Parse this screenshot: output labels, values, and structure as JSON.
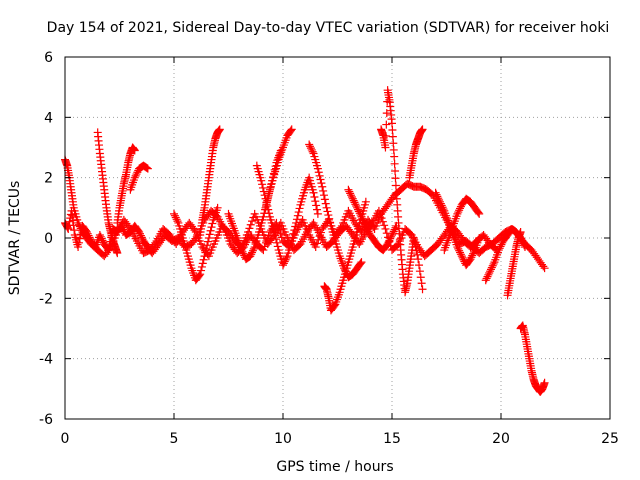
{
  "chart_data": {
    "type": "scatter",
    "title": "Day 154 of 2021, Sidereal Day-to-day VTEC variation (SDTVAR) for receiver hoki",
    "xlabel": "GPS time / hours",
    "ylabel": "SDTVAR / TECUs",
    "xlim": [
      0,
      25
    ],
    "ylim": [
      -6,
      6
    ],
    "xticks": [
      0,
      5,
      10,
      15,
      20,
      25
    ],
    "yticks": [
      -6,
      -4,
      -2,
      0,
      2,
      4,
      6
    ],
    "grid": true,
    "marker": "+",
    "color": "#ff0000",
    "series": [
      {
        "name": "s1",
        "x": [
          0.0,
          0.15,
          0.3,
          0.45,
          0.6,
          0.8,
          1.0,
          1.2,
          1.4,
          1.6,
          1.8,
          2.0,
          2.2,
          2.4,
          2.6,
          2.8,
          3.0,
          3.2,
          3.4,
          3.6,
          3.8,
          4.0,
          4.3,
          4.6,
          4.9,
          5.2,
          5.5,
          5.8,
          6.1,
          6.4,
          6.7,
          7.0,
          7.3,
          7.6,
          7.9,
          8.2,
          8.5,
          8.8,
          9.1,
          9.4,
          9.7,
          10.0,
          10.3,
          10.6,
          10.9,
          11.2,
          11.5,
          11.8,
          12.1,
          12.4,
          12.7,
          13.0,
          13.3,
          13.6,
          13.9,
          14.2,
          14.5,
          14.8,
          15.1,
          15.4,
          15.7,
          16.0,
          16.3,
          16.6,
          16.9,
          17.2,
          17.5,
          17.8,
          18.1,
          18.4,
          18.7,
          19.0,
          19.3,
          19.6,
          19.9,
          20.2,
          20.5,
          20.8,
          21.1,
          21.4,
          21.7,
          22.0
        ],
        "y": [
          0.5,
          0.3,
          0.9,
          0.1,
          -0.3,
          0.4,
          0.2,
          -0.1,
          -0.3,
          0.1,
          -0.2,
          -0.4,
          0.3,
          0.2,
          0.4,
          0.1,
          0.2,
          0.4,
          0.2,
          -0.1,
          -0.3,
          -0.5,
          -0.2,
          0.1,
          -0.1,
          0.0,
          -0.3,
          -0.2,
          0.1,
          0.6,
          0.9,
          0.7,
          0.3,
          -0.2,
          -0.5,
          -0.3,
          0.1,
          -0.2,
          -0.4,
          0.2,
          0.5,
          -0.1,
          -0.3,
          0.2,
          0.6,
          0.1,
          -0.3,
          0.3,
          0.6,
          0.1,
          0.4,
          0.9,
          0.5,
          0.2,
          0.6,
          0.3,
          0.8,
          1.1,
          1.4,
          1.6,
          1.8,
          1.7,
          1.7,
          1.6,
          1.4,
          1.0,
          0.6,
          0.2,
          -0.2,
          -0.1,
          -0.3,
          -0.5,
          -0.3,
          -0.2,
          0.0,
          0.2,
          0.3,
          0.1,
          -0.2,
          -0.4,
          -0.7,
          -1.0
        ]
      },
      {
        "name": "s2",
        "x": [
          0.0,
          0.1,
          0.2,
          0.3,
          0.4,
          0.6,
          0.8,
          1.0,
          1.2,
          1.5,
          1.8,
          2.1,
          2.4,
          2.7,
          3.0,
          3.3,
          3.6,
          3.9,
          4.2,
          4.5,
          4.8,
          5.1,
          5.4,
          5.7,
          6.0,
          6.3,
          6.6,
          6.9,
          7.2,
          7.5,
          7.8,
          8.1,
          8.4,
          8.7,
          9.0,
          9.3,
          9.6,
          9.9,
          10.2,
          10.5,
          10.8,
          11.1,
          11.4,
          11.7,
          12.0,
          12.3,
          12.6,
          12.9,
          13.2,
          13.5,
          13.8,
          14.1,
          14.4,
          14.7,
          15.0,
          15.3,
          15.6,
          15.9,
          16.2,
          16.5,
          16.8,
          17.1,
          17.4,
          17.7,
          18.0,
          18.3,
          18.6,
          18.9,
          19.2,
          19.5,
          19.8
        ],
        "y": [
          2.6,
          2.4,
          2.0,
          1.5,
          1.0,
          0.5,
          0.2,
          0.0,
          -0.2,
          -0.4,
          -0.6,
          -0.3,
          0.2,
          0.6,
          0.3,
          -0.1,
          -0.5,
          -0.4,
          -0.1,
          0.3,
          0.1,
          -0.2,
          0.2,
          0.5,
          0.2,
          -0.3,
          -0.6,
          -0.1,
          0.4,
          0.2,
          -0.1,
          -0.3,
          0.2,
          0.8,
          0.3,
          -0.2,
          0.1,
          0.5,
          0.0,
          -0.4,
          -0.2,
          0.2,
          0.5,
          0.1,
          -0.3,
          -0.1,
          0.2,
          0.4,
          0.1,
          -0.2,
          0.2,
          0.5,
          0.9,
          0.3,
          -0.4,
          -0.2,
          0.3,
          0.1,
          -0.3,
          -0.6,
          -0.4,
          -0.2,
          0.1,
          0.4,
          0.2,
          -0.1,
          -0.3,
          -0.1,
          0.1,
          -0.2,
          -0.4
        ]
      },
      {
        "name": "s3",
        "x": [
          1.5,
          1.6,
          1.7,
          1.8,
          1.9,
          2.0,
          2.1,
          2.2,
          2.3,
          2.4
        ],
        "y": [
          3.5,
          2.8,
          2.2,
          1.6,
          1.0,
          0.5,
          0.2,
          -0.1,
          -0.3,
          -0.5
        ]
      },
      {
        "name": "s4",
        "x": [
          2.4,
          2.5,
          2.6,
          2.7,
          2.8,
          2.9,
          3.0,
          3.1,
          3.2
        ],
        "y": [
          0.5,
          1.0,
          1.4,
          1.8,
          2.1,
          2.5,
          2.8,
          3.0,
          2.9
        ]
      },
      {
        "name": "s5",
        "x": [
          3.0,
          3.2,
          3.4,
          3.6,
          3.8
        ],
        "y": [
          1.6,
          2.0,
          2.3,
          2.4,
          2.3
        ]
      },
      {
        "name": "s6",
        "x": [
          5.0,
          5.2,
          5.4,
          5.6,
          5.8,
          6.0,
          6.2,
          6.4,
          6.6,
          6.8,
          7.0
        ],
        "y": [
          0.8,
          0.5,
          0.0,
          -0.5,
          -1.0,
          -1.4,
          -1.2,
          -0.6,
          0.0,
          0.6,
          1.0
        ]
      },
      {
        "name": "s7",
        "x": [
          6.2,
          6.3,
          6.4,
          6.5,
          6.6,
          6.7,
          6.8,
          6.9,
          7.0,
          7.1
        ],
        "y": [
          0.1,
          0.6,
          1.0,
          1.5,
          2.0,
          2.5,
          3.0,
          3.3,
          3.5,
          3.6
        ]
      },
      {
        "name": "s8",
        "x": [
          7.5,
          7.7,
          7.9,
          8.1,
          8.3,
          8.5,
          8.7,
          8.9,
          9.1,
          9.3,
          9.5,
          9.7,
          9.9
        ],
        "y": [
          0.8,
          0.4,
          0.0,
          -0.4,
          -0.7,
          -0.6,
          -0.3,
          0.2,
          0.7,
          1.3,
          1.9,
          2.5,
          2.9
        ]
      },
      {
        "name": "s9",
        "x": [
          8.8,
          9.0,
          9.2,
          9.4,
          9.6,
          9.8,
          10.0,
          10.2,
          10.4,
          10.6,
          10.8,
          11.0,
          11.2,
          11.4,
          11.6
        ],
        "y": [
          2.4,
          1.9,
          1.3,
          0.7,
          0.2,
          -0.4,
          -0.9,
          -0.6,
          -0.1,
          0.5,
          1.1,
          1.6,
          2.0,
          1.5,
          0.8
        ]
      },
      {
        "name": "s10",
        "x": [
          9.2,
          9.4,
          9.6,
          9.8,
          10.0,
          10.2,
          10.4
        ],
        "y": [
          1.0,
          1.6,
          2.1,
          2.6,
          3.0,
          3.4,
          3.6
        ]
      },
      {
        "name": "s11",
        "x": [
          11.2,
          11.4,
          11.6,
          11.8,
          12.0,
          12.2,
          12.4,
          12.6,
          12.8,
          13.0,
          13.2,
          13.4,
          13.6
        ],
        "y": [
          3.1,
          2.8,
          2.3,
          1.7,
          1.0,
          0.4,
          -0.1,
          -0.6,
          -1.0,
          -1.3,
          -1.2,
          -1.0,
          -0.8
        ]
      },
      {
        "name": "s12",
        "x": [
          11.9,
          12.0,
          12.1,
          12.2,
          12.4,
          12.6,
          12.8,
          13.0,
          13.2,
          13.4,
          13.6,
          13.8
        ],
        "y": [
          -1.6,
          -1.7,
          -2.0,
          -2.4,
          -2.2,
          -1.8,
          -1.3,
          -0.8,
          -0.3,
          0.2,
          0.7,
          1.2
        ]
      },
      {
        "name": "s13",
        "x": [
          13.0,
          13.2,
          13.4,
          13.6,
          13.8,
          14.0,
          14.2,
          14.4,
          14.6,
          14.8,
          15.0,
          15.2
        ],
        "y": [
          1.6,
          1.3,
          1.0,
          0.7,
          0.4,
          0.1,
          -0.1,
          -0.3,
          -0.4,
          -0.2,
          0.1,
          0.4
        ]
      },
      {
        "name": "s14",
        "x": [
          14.5,
          14.6,
          14.7,
          14.8,
          14.9,
          15.0,
          15.1,
          15.2,
          15.3,
          15.4,
          15.5,
          15.6,
          15.7,
          15.8,
          15.9,
          16.0,
          16.2,
          16.4
        ],
        "y": [
          3.6,
          3.4,
          3.0,
          4.9,
          4.5,
          3.8,
          2.7,
          1.5,
          0.5,
          -0.4,
          -1.2,
          -1.8,
          -1.5,
          -1.0,
          -0.5,
          0.0,
          -0.7,
          -1.7
        ]
      },
      {
        "name": "s15",
        "x": [
          15.8,
          15.9,
          16.0,
          16.1,
          16.2,
          16.3,
          16.4
        ],
        "y": [
          2.0,
          2.4,
          2.8,
          3.1,
          3.3,
          3.5,
          3.6
        ]
      },
      {
        "name": "s16",
        "x": [
          17.0,
          17.2,
          17.4,
          17.6,
          17.8,
          18.0,
          18.2,
          18.4,
          18.6,
          18.8,
          19.0
        ],
        "y": [
          1.5,
          1.2,
          0.9,
          0.5,
          0.1,
          -0.3,
          -0.6,
          -0.9,
          -0.7,
          -0.4,
          0.0
        ]
      },
      {
        "name": "s17",
        "x": [
          17.4,
          17.6,
          17.8,
          18.0,
          18.2,
          18.4,
          18.6,
          18.8,
          19.0
        ],
        "y": [
          -0.4,
          0.0,
          0.4,
          0.8,
          1.1,
          1.3,
          1.2,
          1.0,
          0.8
        ]
      },
      {
        "name": "s18",
        "x": [
          19.3,
          19.5,
          19.7,
          19.9,
          20.1,
          20.3,
          20.5,
          20.7,
          20.9,
          21.1
        ],
        "y": [
          -1.4,
          -1.1,
          -0.8,
          -0.4,
          -0.1,
          0.1,
          0.3,
          0.2,
          0.0,
          -0.3
        ]
      },
      {
        "name": "s19",
        "x": [
          20.3,
          20.4,
          20.5,
          20.6,
          20.7,
          20.8,
          20.9
        ],
        "y": [
          -1.9,
          -1.5,
          -1.1,
          -0.7,
          -0.3,
          0.0,
          0.2
        ]
      },
      {
        "name": "s20",
        "x": [
          20.9,
          21.0,
          21.1,
          21.2,
          21.3,
          21.4,
          21.5,
          21.6,
          21.7,
          21.8,
          21.9,
          22.0
        ],
        "y": [
          -3.0,
          -2.9,
          -3.2,
          -3.6,
          -4.0,
          -4.4,
          -4.7,
          -4.9,
          -5.0,
          -5.1,
          -5.0,
          -4.8
        ]
      }
    ]
  }
}
